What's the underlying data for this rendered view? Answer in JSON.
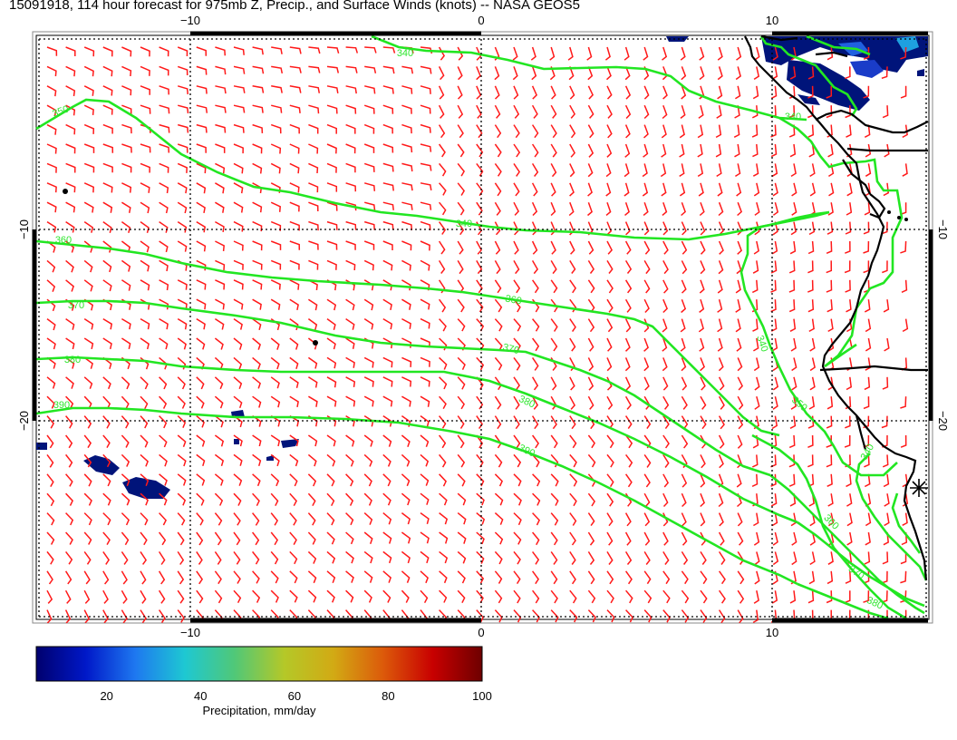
{
  "title": "15091918, 114 hour forecast for 975mb Z, Precip., and Surface Winds (knots) -- NASA GEOS5",
  "map": {
    "lon_ticks_top": [
      "−10",
      "0",
      "10"
    ],
    "lon_ticks_bottom": [
      "−10",
      "0",
      "10"
    ],
    "lat_ticks_left": [
      "−10",
      "−20"
    ],
    "lat_ticks_right": [
      "−10",
      "−20"
    ],
    "contour_labels": [
      "340",
      "350",
      "360",
      "370",
      "380",
      "390"
    ],
    "colors": {
      "contour": "#22e622",
      "wind_barb": "#ff1a1a",
      "coastline": "#000000",
      "precip_low": "#00147a",
      "precip_high": "#8b0000"
    },
    "icons": [
      "wind-barb-icon",
      "star-marker-icon"
    ]
  },
  "colorbar": {
    "label": "Precipitation, mm/day",
    "ticks": [
      "20",
      "40",
      "60",
      "80",
      "100"
    ],
    "range": [
      5,
      100
    ],
    "stops": [
      "#00006e",
      "#0018c8",
      "#1e78f0",
      "#1ec8d2",
      "#50c878",
      "#b4c828",
      "#d2aa14",
      "#dc5a0a",
      "#c80000",
      "#6e0000"
    ]
  }
}
